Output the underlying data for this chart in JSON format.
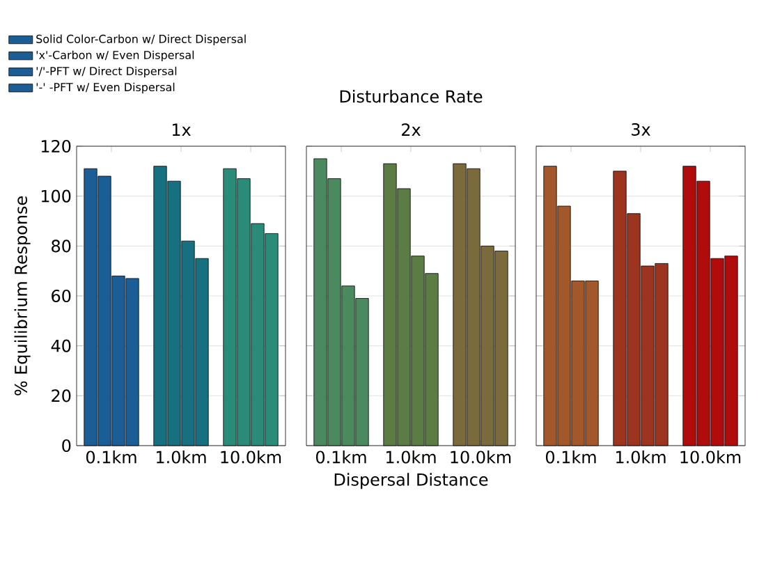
{
  "chart_data": [
    {
      "type": "bar",
      "title": "1x",
      "ylabel": "% Equilibrium Response",
      "categories": [
        "0.1km",
        "1.0km",
        "10.0km"
      ],
      "ylim": [
        0,
        120
      ],
      "yticks": [
        0,
        20,
        40,
        60,
        80,
        100,
        120
      ],
      "grid": "y",
      "legend": "top left",
      "series": [
        {
          "name": "Solid Color-Carbon w/ Direct Dispersal",
          "colors": [
            "#1b5e96",
            "#16707f",
            "#2a8c78"
          ],
          "values": [
            111,
            112,
            111
          ]
        },
        {
          "name": "'x'-Carbon w/ Even Dispersal",
          "colors": [
            "#1b5e96",
            "#16707f",
            "#2a8c78"
          ],
          "values": [
            108,
            106,
            107
          ]
        },
        {
          "name": "'/'-PFT w/ Direct Dispersal",
          "colors": [
            "#1b5e96",
            "#16707f",
            "#2a8c78"
          ],
          "values": [
            68,
            82,
            89
          ]
        },
        {
          "name": "'-' -PFT w/ Even Dispersal",
          "colors": [
            "#1b5e96",
            "#16707f",
            "#2a8c78"
          ],
          "values": [
            67,
            75,
            85
          ]
        }
      ]
    },
    {
      "type": "bar",
      "title": "2x",
      "xlabel": "Dispersal Distance",
      "annotations": [
        "Disturbance Rate"
      ],
      "categories": [
        "0.1km",
        "1.0km",
        "10.0km"
      ],
      "ylim": [
        0,
        120
      ],
      "yticks": [
        0,
        20,
        40,
        60,
        80,
        100,
        120
      ],
      "grid": "y",
      "tick_labels": "x",
      "series": [
        {
          "colors": [
            "#4b8a5e",
            "#5c7c46",
            "#7b6a3c"
          ],
          "values": [
            115,
            113,
            113
          ]
        },
        {
          "colors": [
            "#4b8a5e",
            "#5c7c46",
            "#7b6a3c"
          ],
          "values": [
            107,
            103,
            111
          ]
        },
        {
          "colors": [
            "#4b8a5e",
            "#5c7c46",
            "#7b6a3c"
          ],
          "values": [
            64,
            76,
            80
          ]
        },
        {
          "colors": [
            "#4b8a5e",
            "#5c7c46",
            "#7b6a3c"
          ],
          "values": [
            59,
            69,
            78
          ]
        }
      ]
    },
    {
      "type": "bar",
      "title": "3x",
      "categories": [
        "0.1km",
        "1.0km",
        "10.0km"
      ],
      "ylim": [
        0,
        120
      ],
      "yticks": [
        0,
        20,
        40,
        60,
        80,
        100,
        120
      ],
      "grid": "y",
      "tick_labels": "x",
      "series": [
        {
          "colors": [
            "#a2582a",
            "#9c3420",
            "#b00c0c"
          ],
          "values": [
            112,
            110,
            112
          ]
        },
        {
          "colors": [
            "#a2582a",
            "#9c3420",
            "#b00c0c"
          ],
          "values": [
            96,
            93,
            106
          ]
        },
        {
          "colors": [
            "#a2582a",
            "#9c3420",
            "#b00c0c"
          ],
          "values": [
            66,
            72,
            75
          ]
        },
        {
          "colors": [
            "#a2582a",
            "#9c3420",
            "#b00c0c"
          ],
          "values": [
            66,
            73,
            76
          ]
        }
      ]
    }
  ]
}
